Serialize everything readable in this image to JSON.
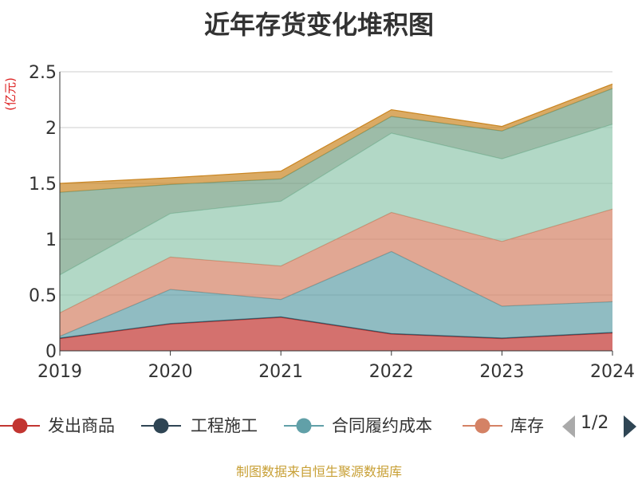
{
  "chart_data": {
    "type": "area",
    "title": "近年存货变化堆积图",
    "unit_label": "(亿元)",
    "x": [
      "2019",
      "2020",
      "2021",
      "2022",
      "2023",
      "2024"
    ],
    "y_ticks": [
      "0",
      "0.5",
      "1",
      "1.5",
      "2",
      "2.5"
    ],
    "ylim": [
      0,
      2.5
    ],
    "stacked": true,
    "grid": true,
    "legend_position": "bottom",
    "series": [
      {
        "name": "发出商品",
        "color": "#c23531",
        "values": [
          0.11,
          0.24,
          0.3,
          0.15,
          0.11,
          0.16
        ]
      },
      {
        "name": "工程施工",
        "color": "#2f4554",
        "values": [
          0.005,
          0.005,
          0.005,
          0.005,
          0.005,
          0.005
        ]
      },
      {
        "name": "合同履约成本",
        "color": "#61a0a8",
        "values": [
          0.015,
          0.305,
          0.155,
          0.735,
          0.285,
          0.275
        ]
      },
      {
        "name": "库存",
        "color": "#d48265",
        "values": [
          0.21,
          0.29,
          0.3,
          0.35,
          0.58,
          0.83
        ]
      },
      {
        "name": null,
        "color": "#91c7ae",
        "values": [
          0.34,
          0.39,
          0.58,
          0.71,
          0.74,
          0.76
        ]
      },
      {
        "name": null,
        "color": "#749f83",
        "values": [
          0.74,
          0.26,
          0.2,
          0.15,
          0.25,
          0.32
        ]
      },
      {
        "name": null,
        "color": "#ca8622",
        "values": [
          0.08,
          0.06,
          0.07,
          0.06,
          0.04,
          0.04
        ]
      }
    ]
  },
  "legend": {
    "items": [
      {
        "label": "发出商品",
        "color": "#c23531"
      },
      {
        "label": "工程施工",
        "color": "#2f4554"
      },
      {
        "label": "合同履约成本",
        "color": "#61a0a8"
      },
      {
        "label": "库存",
        "color": "#d48265"
      }
    ],
    "page_text": "1/2"
  },
  "footer": {
    "source": "制图数据来自恒生聚源数据库"
  }
}
